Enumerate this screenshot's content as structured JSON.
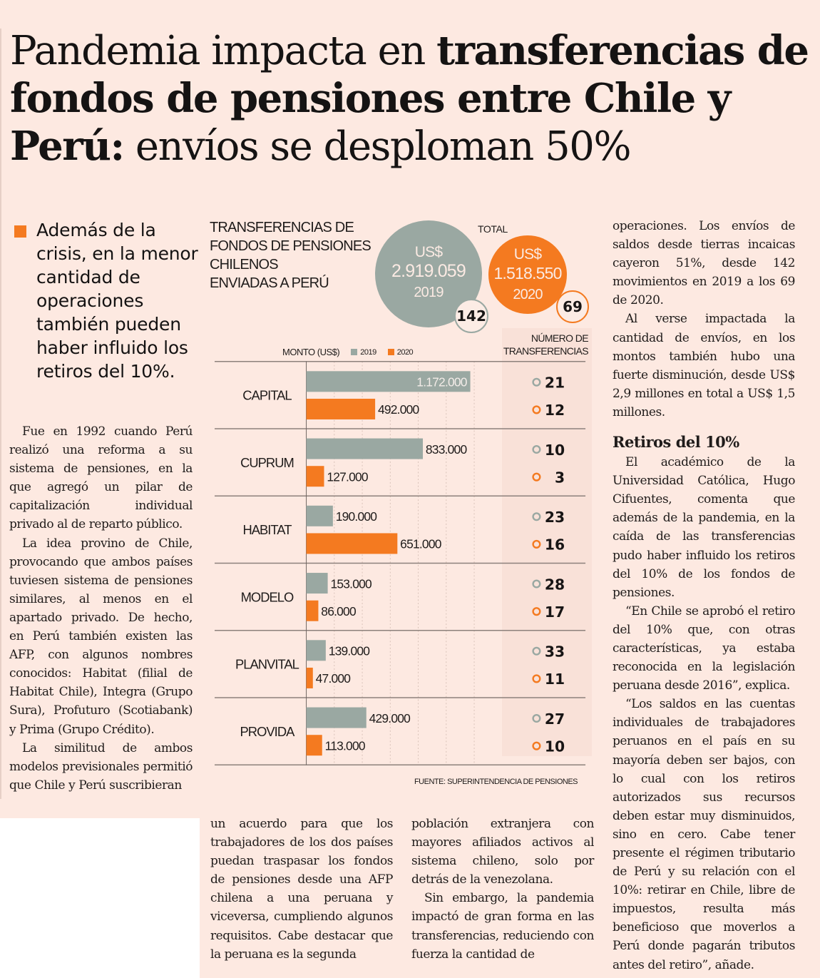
{
  "headline": {
    "part1": "Pandemia impacta en ",
    "part2_bold": "transferencias de fondos de pensiones entre Chile y Perú:",
    "part3": " envíos se desploman 50%"
  },
  "pullquote": "Además de la crisis, en la menor cantidad de operaciones también pueden haber influido los retiros del 10%.",
  "body": {
    "col1": [
      "Fue en 1992 cuando Perú realizó una reforma a su sistema de pensiones, en la que agregó un pilar de capitalización individual privado al de reparto público.",
      "La idea provino de Chile, provocando que ambos países tuviesen sistema de pensiones similares, al menos en el apartado privado. De hecho, en Perú también existen las AFP, con algunos nombres conocidos: Habitat (filial de Habitat Chile), Integra (Grupo Sura), Profuturo (Scotiabank) y Prima (Grupo Crédito).",
      "La similitud de ambos modelos previsionales permitió que Chile y Perú suscribieran"
    ],
    "col2": [
      "un acuerdo para que los trabajadores de los dos países puedan traspasar los fondos de pensiones desde una AFP chilena a una peruana y viceversa, cumpliendo algunos requisitos. Cabe destacar que la peruana es la segunda"
    ],
    "col3": [
      "población extranjera con mayores afiliados activos al sistema chileno, solo por detrás de la venezolana.",
      "Sin embargo, la pandemia impactó de gran forma en las transferencias, reduciendo con fuerza la cantidad de"
    ],
    "col4": [
      "operaciones. Los envíos de saldos desde tierras incaicas cayeron 51%, desde 142 movimientos en 2019 a los 69 de 2020.",
      "Al verse impactada la cantidad de envíos, en los montos también hubo una fuerte disminución, desde US$ 2,9 millones en total a US$ 1,5 millones."
    ],
    "subhead": "Retiros del 10%",
    "col4b": [
      "El académico de la Universidad Católica, Hugo Cifuentes, comenta que además de la pandemia, en la caída de las transferencias pudo haber influido los retiros del 10% de los fondos de pensiones.",
      "“En Chile se aprobó el retiro del 10% que, con otras características, ya estaba reconocida en la legislación peruana desde 2016”, explica.",
      "“Los saldos en las cuentas individuales de trabajadores peruanos en el país en su mayoría deben ser bajos, con lo cual con los retiros autorizados sus recursos deben estar muy disminuidos, sino en cero. Cabe tener presente el régimen tributario de Perú y su relación con el 10%: retirar en Chile, libre de impuestos, resulta más beneficioso que moverlos a Perú donde pagarán tributos antes del retiro”, añade."
    ]
  },
  "infographic": {
    "title_lines": [
      "TRANSFERENCIAS DE",
      "FONDOS DE PENSIONES",
      "CHILENOS",
      "ENVIADAS A PERÚ"
    ],
    "total_label": "TOTAL",
    "totals": [
      {
        "currency": "US$",
        "amount": "2.919.059",
        "year": "2019",
        "count": "142"
      },
      {
        "currency": "US$",
        "amount": "1.518.550",
        "year": "2020",
        "count": "69"
      }
    ],
    "axis_label": "MONTO (US$)",
    "count_header_lines": [
      "NÚMERO DE",
      "TRANSFERENCIAS"
    ],
    "source": "FUENTE: SUPERINTENDENCIA DE PENSIONES",
    "colors": {
      "y2019": "#9aa8a2",
      "y2020": "#f47a20"
    }
  },
  "chart_data": {
    "type": "bar",
    "orientation": "horizontal",
    "title": "Transferencias de fondos de pensiones chilenos enviadas a Perú",
    "xlabel": "MONTO (US$)",
    "categories": [
      "CAPITAL",
      "CUPRUM",
      "HABITAT",
      "MODELO",
      "PLANVITAL",
      "PROVIDA"
    ],
    "series": [
      {
        "name": "2019",
        "values": [
          1172000,
          833000,
          190000,
          153000,
          139000,
          429000
        ],
        "labels": [
          "1.172.000",
          "833.000",
          "190.000",
          "153.000",
          "139.000",
          "429.000"
        ],
        "counts": [
          21,
          10,
          23,
          28,
          33,
          27
        ]
      },
      {
        "name": "2020",
        "values": [
          492000,
          127000,
          651000,
          86000,
          47000,
          113000
        ],
        "labels": [
          "492.000",
          "127.000",
          "651.000",
          "86.000",
          "47.000",
          "113.000"
        ],
        "counts": [
          12,
          3,
          16,
          17,
          11,
          10
        ]
      }
    ],
    "xlim": [
      0,
      1400000
    ],
    "gridlines": [
      200000,
      400000,
      600000,
      800000,
      1000000,
      1200000
    ],
    "grid": true,
    "legend": "top",
    "totals": {
      "2019": {
        "amount": 2919059,
        "count": 142
      },
      "2020": {
        "amount": 1518550,
        "count": 69
      }
    }
  }
}
